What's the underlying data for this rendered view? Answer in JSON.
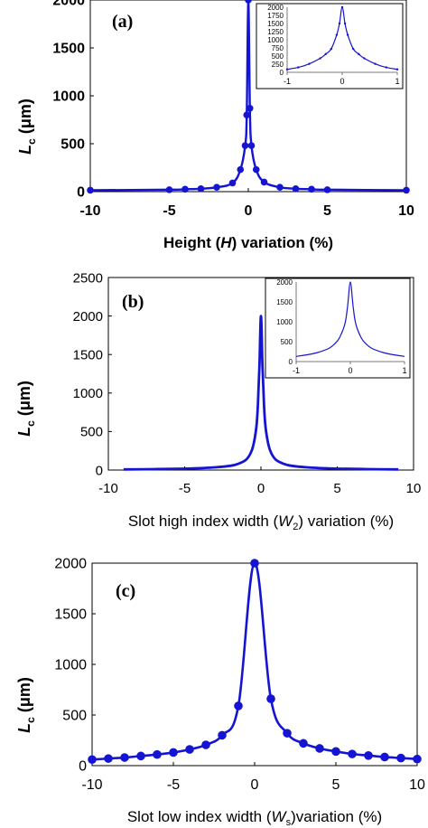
{
  "colors": {
    "series": "#1414d2",
    "axis": "#000000"
  },
  "chart_data": [
    {
      "panel_label": "(a)",
      "type": "line",
      "marker": "circle",
      "xlabel_pre": "Height (",
      "xlabel_var": "H",
      "xlabel_sub": "",
      "xlabel_post": ") variation (%)",
      "ylabel_main": "L",
      "ylabel_sub": "c",
      "ylabel_unit": " (μm)",
      "xlim": [
        -10,
        10
      ],
      "ylim": [
        0,
        2000
      ],
      "xticks": [
        -10,
        -5,
        0,
        5,
        10
      ],
      "yticks": [
        0,
        500,
        1000,
        1500,
        2000
      ],
      "x": [
        -10,
        -5,
        -4,
        -3,
        -2,
        -1,
        -0.5,
        -0.2,
        -0.1,
        0,
        0.1,
        0.2,
        0.5,
        1,
        2,
        3,
        4,
        5,
        10
      ],
      "y": [
        15,
        20,
        25,
        30,
        45,
        90,
        230,
        480,
        800,
        2000,
        870,
        480,
        230,
        100,
        45,
        30,
        25,
        20,
        15
      ],
      "inset": {
        "xlim": [
          -1,
          1
        ],
        "ylim": [
          0,
          2000
        ],
        "xticks": [
          -1,
          0,
          1
        ],
        "yticks": [
          0,
          250,
          500,
          750,
          1000,
          1250,
          1500,
          1750,
          2000
        ],
        "x": [
          -1,
          -0.8,
          -0.6,
          -0.4,
          -0.3,
          -0.2,
          -0.1,
          -0.05,
          0,
          0.05,
          0.1,
          0.2,
          0.3,
          0.4,
          0.6,
          0.8,
          1
        ],
        "y": [
          90,
          150,
          260,
          430,
          560,
          720,
          1150,
          1500,
          2000,
          1500,
          1150,
          720,
          560,
          430,
          260,
          150,
          90
        ]
      }
    },
    {
      "panel_label": "(b)",
      "type": "line",
      "marker": "none",
      "xlabel_pre": "Slot high index width (",
      "xlabel_var": "W",
      "xlabel_sub": "2",
      "xlabel_post": ") variation (%)",
      "ylabel_main": "L",
      "ylabel_sub": "c",
      "ylabel_unit": " (μm)",
      "xlim": [
        -10,
        10
      ],
      "ylim": [
        0,
        2500
      ],
      "xticks": [
        -10,
        -5,
        0,
        5,
        10
      ],
      "yticks": [
        0,
        500,
        1000,
        1500,
        2000,
        2500
      ],
      "x": [
        -9,
        -7,
        -5,
        -4,
        -3,
        -2,
        -1.5,
        -1,
        -0.7,
        -0.5,
        -0.3,
        -0.2,
        -0.1,
        0,
        0.1,
        0.2,
        0.3,
        0.5,
        0.7,
        1,
        1.5,
        2,
        3,
        4,
        5,
        7,
        9
      ],
      "y": [
        8,
        12,
        18,
        25,
        35,
        55,
        80,
        130,
        210,
        320,
        560,
        850,
        1350,
        2000,
        1350,
        850,
        560,
        320,
        210,
        130,
        80,
        55,
        35,
        25,
        18,
        12,
        8
      ],
      "inset": {
        "xlim": [
          -1,
          1
        ],
        "ylim": [
          0,
          2000
        ],
        "xticks": [
          -1,
          0,
          1
        ],
        "yticks": [
          0,
          500,
          1000,
          1500,
          2000
        ],
        "x": [
          -1,
          -0.8,
          -0.6,
          -0.4,
          -0.3,
          -0.2,
          -0.1,
          -0.05,
          0,
          0.05,
          0.1,
          0.2,
          0.3,
          0.4,
          0.6,
          0.8,
          1
        ],
        "y": [
          130,
          170,
          230,
          330,
          430,
          600,
          950,
          1400,
          2000,
          1400,
          950,
          600,
          430,
          330,
          230,
          170,
          130
        ]
      }
    },
    {
      "panel_label": "(c)",
      "type": "line",
      "marker": "circle",
      "xlabel_pre": "Slot low index width (",
      "xlabel_var": "W",
      "xlabel_sub": "s",
      "xlabel_post": ")variation (%)",
      "ylabel_main": "L",
      "ylabel_sub": "c",
      "ylabel_unit": " (μm)",
      "xlim": [
        -10,
        10
      ],
      "ylim": [
        0,
        2000
      ],
      "xticks": [
        -10,
        -5,
        0,
        5,
        10
      ],
      "yticks": [
        0,
        500,
        1000,
        1500,
        2000
      ],
      "x": [
        -10,
        -9,
        -8,
        -7,
        -6,
        -5,
        -4,
        -3,
        -2,
        -1,
        0,
        1,
        2,
        3,
        4,
        5,
        6,
        7,
        8,
        9,
        10
      ],
      "y": [
        60,
        70,
        80,
        95,
        110,
        130,
        160,
        205,
        300,
        590,
        2000,
        660,
        320,
        220,
        170,
        140,
        115,
        100,
        85,
        75,
        65
      ]
    }
  ]
}
